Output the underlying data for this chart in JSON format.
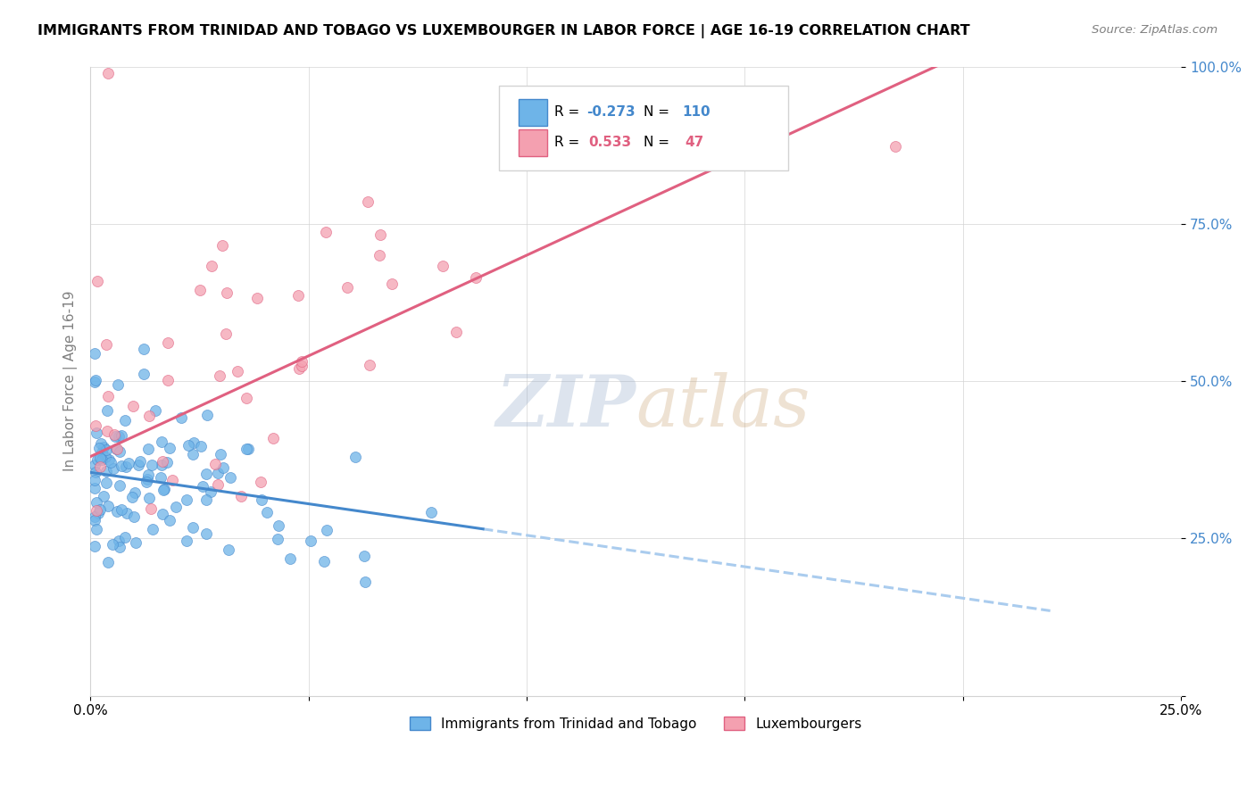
{
  "title": "IMMIGRANTS FROM TRINIDAD AND TOBAGO VS LUXEMBOURGER IN LABOR FORCE | AGE 16-19 CORRELATION CHART",
  "source": "Source: ZipAtlas.com",
  "ylabel": "In Labor Force | Age 16-19",
  "R_blue": -0.273,
  "N_blue": 110,
  "R_pink": 0.533,
  "N_pink": 47,
  "xlim": [
    0.0,
    0.25
  ],
  "ylim": [
    0.0,
    1.0
  ],
  "color_blue": "#6EB4E8",
  "color_pink": "#F4A0B0",
  "color_trendline_blue": "#4488CC",
  "color_trendline_pink": "#E06080",
  "color_dashed": "#AACCEE",
  "watermark_zip": "ZIP",
  "watermark_atlas": "atlas",
  "watermark_color_zip": "#B0C4DE",
  "watermark_color_atlas": "#C8A080",
  "legend_blue_label": "Immigrants from Trinidad and Tobago",
  "legend_pink_label": "Luxembourgers"
}
